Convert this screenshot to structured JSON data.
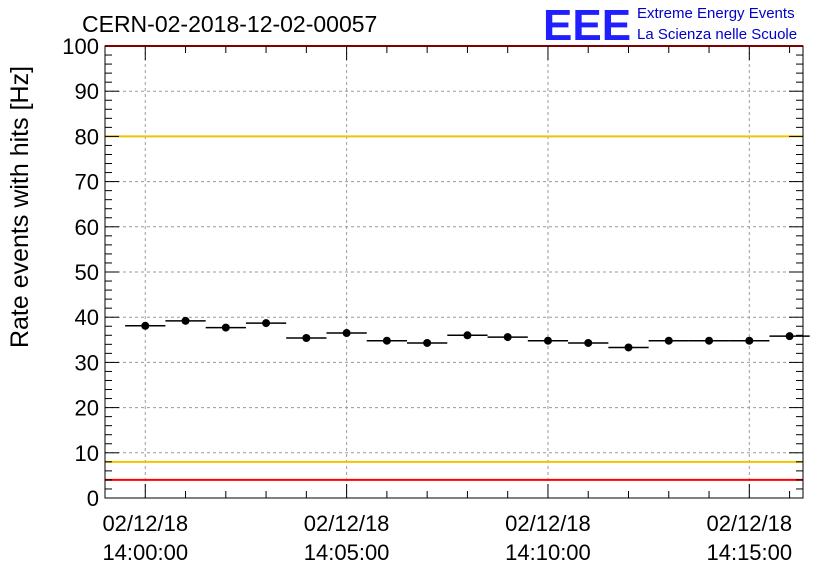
{
  "chart_data": {
    "type": "scatter",
    "title": "CERN-02-2018-12-02-00057",
    "ylabel": "Rate events with hits [Hz]",
    "xlabel": "",
    "ylim": [
      0,
      100
    ],
    "yticks": [
      "0",
      "10",
      "20",
      "30",
      "40",
      "50",
      "60",
      "70",
      "80",
      "90",
      "100"
    ],
    "xlim_seconds": [
      -60,
      980
    ],
    "xticks": [
      {
        "t": 0,
        "date": "02/12/18",
        "time": "14:00:00"
      },
      {
        "t": 300,
        "date": "02/12/18",
        "time": "14:05:00"
      },
      {
        "t": 600,
        "date": "02/12/18",
        "time": "14:10:00"
      },
      {
        "t": 900,
        "date": "02/12/18",
        "time": "14:15:00"
      }
    ],
    "bin_width_seconds": 60,
    "grid": true,
    "series": [
      {
        "x": [
          "14:00:00",
          "14:01:00",
          "14:02:00",
          "14:03:00",
          "14:04:00",
          "14:05:00",
          "14:06:00",
          "14:07:00",
          "14:08:00",
          "14:09:00",
          "14:10:00",
          "14:11:00",
          "14:12:00",
          "14:13:00",
          "14:14:00",
          "14:15:00",
          "14:16:00"
        ],
        "values": [
          38.1,
          39.2,
          37.7,
          38.7,
          35.4,
          36.5,
          34.8,
          34.3,
          36.0,
          35.6,
          34.8,
          34.3,
          33.3,
          34.8,
          34.8,
          34.8,
          35.8
        ],
        "color": "#000000"
      }
    ],
    "reference_lines": [
      {
        "y": 80,
        "color": "#f2c300"
      },
      {
        "y": 8,
        "color": "#f2c300"
      },
      {
        "y": 100,
        "color": "#ff0000"
      },
      {
        "y": 4,
        "color": "#ff0000"
      }
    ]
  },
  "logo": {
    "mark": "EEE",
    "line1": "Extreme Energy Events",
    "line2": "La Scienza nelle Scuole",
    "color": "#1f1fff"
  }
}
